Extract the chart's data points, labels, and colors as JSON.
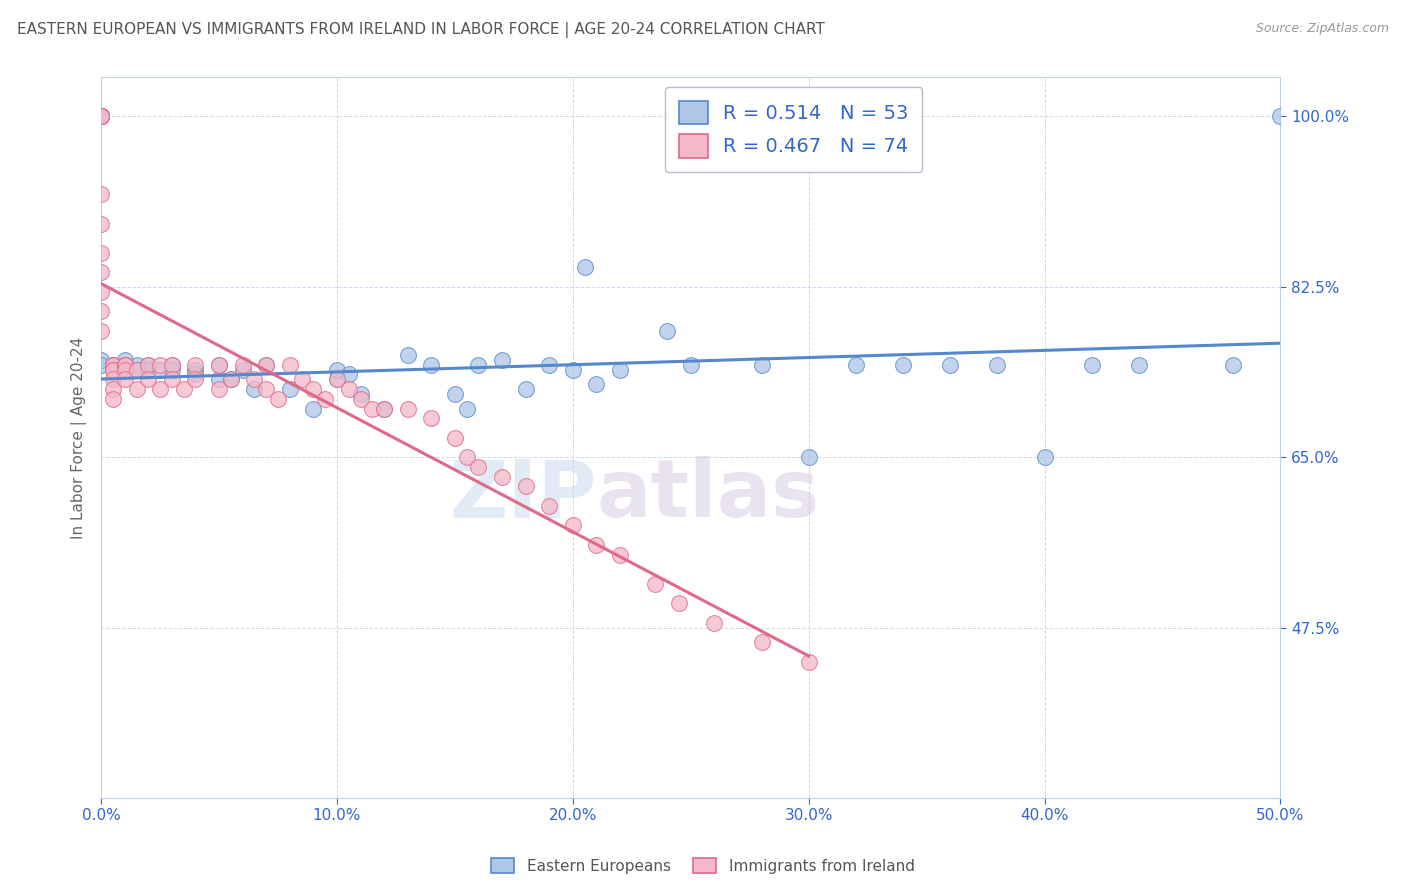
{
  "title": "EASTERN EUROPEAN VS IMMIGRANTS FROM IRELAND IN LABOR FORCE | AGE 20-24 CORRELATION CHART",
  "source": "Source: ZipAtlas.com",
  "ylabel": "In Labor Force | Age 20-24",
  "xlim": [
    0.0,
    0.5
  ],
  "ylim": [
    0.3,
    1.04
  ],
  "xtick_labels": [
    "0.0%",
    "10.0%",
    "20.0%",
    "30.0%",
    "40.0%",
    "50.0%"
  ],
  "xtick_vals": [
    0.0,
    0.1,
    0.2,
    0.3,
    0.4,
    0.5
  ],
  "ytick_labels": [
    "47.5%",
    "65.0%",
    "82.5%",
    "100.0%"
  ],
  "ytick_vals": [
    0.475,
    0.65,
    0.825,
    1.0
  ],
  "blue_R": 0.514,
  "blue_N": 53,
  "pink_R": 0.467,
  "pink_N": 74,
  "blue_fill": "#aec6e8",
  "pink_fill": "#f4b8c8",
  "blue_edge": "#5588cc",
  "pink_edge": "#e06888",
  "legend_label_blue": "Eastern Europeans",
  "legend_label_pink": "Immigrants from Ireland",
  "watermark": "ZIPatlas",
  "blue_x": [
    0.0,
    0.0,
    0.005,
    0.01,
    0.01,
    0.01,
    0.015,
    0.015,
    0.02,
    0.02,
    0.025,
    0.03,
    0.03,
    0.04,
    0.04,
    0.05,
    0.05,
    0.055,
    0.06,
    0.065,
    0.07,
    0.08,
    0.09,
    0.1,
    0.1,
    0.105,
    0.11,
    0.12,
    0.13,
    0.14,
    0.15,
    0.155,
    0.16,
    0.17,
    0.18,
    0.19,
    0.2,
    0.205,
    0.21,
    0.22,
    0.24,
    0.25,
    0.28,
    0.3,
    0.32,
    0.34,
    0.36,
    0.38,
    0.4,
    0.42,
    0.44,
    0.48,
    0.5
  ],
  "blue_y": [
    0.75,
    0.745,
    0.745,
    0.75,
    0.745,
    0.74,
    0.745,
    0.74,
    0.745,
    0.74,
    0.74,
    0.745,
    0.74,
    0.74,
    0.735,
    0.73,
    0.745,
    0.73,
    0.74,
    0.72,
    0.745,
    0.72,
    0.7,
    0.73,
    0.74,
    0.735,
    0.715,
    0.7,
    0.755,
    0.745,
    0.715,
    0.7,
    0.745,
    0.75,
    0.72,
    0.745,
    0.74,
    0.845,
    0.725,
    0.74,
    0.78,
    0.745,
    0.745,
    0.65,
    0.745,
    0.745,
    0.745,
    0.745,
    0.65,
    0.745,
    0.745,
    0.745,
    1.0
  ],
  "pink_x": [
    0.0,
    0.0,
    0.0,
    0.0,
    0.0,
    0.0,
    0.0,
    0.0,
    0.0,
    0.0,
    0.0,
    0.0,
    0.0,
    0.0,
    0.0,
    0.0,
    0.005,
    0.005,
    0.005,
    0.005,
    0.005,
    0.005,
    0.005,
    0.005,
    0.005,
    0.01,
    0.01,
    0.01,
    0.01,
    0.01,
    0.015,
    0.015,
    0.02,
    0.02,
    0.025,
    0.025,
    0.03,
    0.03,
    0.035,
    0.04,
    0.04,
    0.05,
    0.05,
    0.055,
    0.06,
    0.065,
    0.07,
    0.07,
    0.075,
    0.08,
    0.085,
    0.09,
    0.095,
    0.1,
    0.105,
    0.11,
    0.115,
    0.12,
    0.13,
    0.14,
    0.15,
    0.155,
    0.16,
    0.17,
    0.18,
    0.19,
    0.2,
    0.21,
    0.22,
    0.235,
    0.245,
    0.26,
    0.28,
    0.3
  ],
  "pink_y": [
    1.0,
    1.0,
    1.0,
    1.0,
    1.0,
    1.0,
    1.0,
    1.0,
    1.0,
    0.92,
    0.89,
    0.86,
    0.84,
    0.82,
    0.8,
    0.78,
    0.745,
    0.745,
    0.745,
    0.745,
    0.74,
    0.74,
    0.73,
    0.72,
    0.71,
    0.745,
    0.745,
    0.745,
    0.74,
    0.73,
    0.74,
    0.72,
    0.745,
    0.73,
    0.745,
    0.72,
    0.745,
    0.73,
    0.72,
    0.745,
    0.73,
    0.745,
    0.72,
    0.73,
    0.745,
    0.73,
    0.745,
    0.72,
    0.71,
    0.745,
    0.73,
    0.72,
    0.71,
    0.73,
    0.72,
    0.71,
    0.7,
    0.7,
    0.7,
    0.69,
    0.67,
    0.65,
    0.64,
    0.63,
    0.62,
    0.6,
    0.58,
    0.56,
    0.55,
    0.52,
    0.5,
    0.48,
    0.46,
    0.44
  ]
}
